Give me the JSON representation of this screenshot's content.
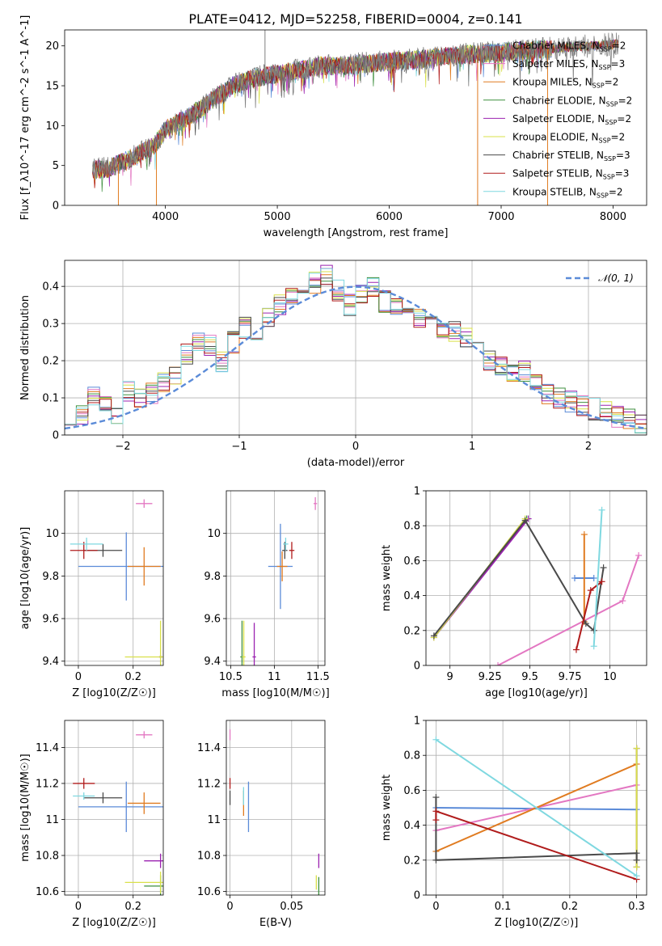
{
  "figure": {
    "title": "PLATE=0412, MJD=52258, FIBERID=0004, z=0.141"
  },
  "colors": {
    "spectrum_data": "#808080",
    "gaussian": "#5b8bd8",
    "grid": "#b0b0b0"
  },
  "models": [
    {
      "name": "Chabrier MILES",
      "nssp": "2",
      "color": "#5b8bd8"
    },
    {
      "name": "Salpeter MILES",
      "nssp": "3",
      "color": "#e377c2"
    },
    {
      "name": "Kroupa MILES",
      "nssp": "2",
      "color": "#e07b20"
    },
    {
      "name": "Chabrier ELODIE",
      "nssp": "2",
      "color": "#3f8f3f"
    },
    {
      "name": "Salpeter ELODIE",
      "nssp": "2",
      "color": "#9b22b0"
    },
    {
      "name": "Kroupa ELODIE",
      "nssp": "2",
      "color": "#d9e04a"
    },
    {
      "name": "Chabrier STELIB",
      "nssp": "3",
      "color": "#4a4a4a"
    },
    {
      "name": "Salpeter STELIB",
      "nssp": "3",
      "color": "#b01b1b"
    },
    {
      "name": "Kroupa STELIB",
      "nssp": "2",
      "color": "#7fd8e0"
    }
  ],
  "chart_data": [
    {
      "id": "spectrum",
      "type": "line",
      "xlabel": "wavelength [Angstrom, rest frame]",
      "ylabel": "Flux [f_λ10^-17 erg cm^-2 s^-1 A^-1]",
      "xlim": [
        3100,
        8300
      ],
      "ylim": [
        0,
        22
      ],
      "xticks": [
        4000,
        5000,
        6000,
        7000,
        8000
      ],
      "yticks": [
        0,
        5,
        10,
        15,
        20
      ],
      "grid": false,
      "legend": "right",
      "x": [
        3350,
        3500,
        3700,
        3900,
        4000,
        4200,
        4400,
        4600,
        4800,
        5000,
        5200,
        5400,
        5600,
        5800,
        6000,
        6200,
        6400,
        6600,
        6800,
        7000,
        7200,
        7400,
        7600,
        7800,
        8000,
        8050
      ],
      "y": [
        4.5,
        4.6,
        6.0,
        7.5,
        9.5,
        11.0,
        13.0,
        15.0,
        16.0,
        16.5,
        17.0,
        17.5,
        17.5,
        17.8,
        18.0,
        18.2,
        18.5,
        18.8,
        19.0,
        19.2,
        19.4,
        19.6,
        19.8,
        20.0,
        20.2,
        20.3
      ],
      "spikes": [
        {
          "x": 3580,
          "y": 0
        },
        {
          "x": 3920,
          "y": 0
        },
        {
          "x": 4890,
          "y": 22
        },
        {
          "x": 6790,
          "y": 0
        },
        {
          "x": 7415,
          "y": 0
        }
      ]
    },
    {
      "id": "residuals",
      "type": "bar",
      "xlabel": "(data-model)/error",
      "ylabel": "Normed distribution",
      "xlim": [
        -2.5,
        2.5
      ],
      "ylim": [
        0,
        0.47
      ],
      "xticks": [
        -2,
        -1,
        0,
        1,
        2
      ],
      "yticks": [
        0.0,
        0.1,
        0.2,
        0.3,
        0.4
      ],
      "grid": true,
      "legend": "top-right",
      "gaussian_label": "𝒩(0, 1)",
      "bin_width": 0.1,
      "x_start": -2.5,
      "histogram": [
        0.04,
        0.05,
        0.1,
        0.08,
        0.06,
        0.12,
        0.1,
        0.11,
        0.14,
        0.16,
        0.22,
        0.25,
        0.24,
        0.2,
        0.25,
        0.29,
        0.28,
        0.32,
        0.35,
        0.37,
        0.4,
        0.41,
        0.43,
        0.39,
        0.35,
        0.38,
        0.4,
        0.36,
        0.34,
        0.33,
        0.31,
        0.3,
        0.28,
        0.28,
        0.26,
        0.23,
        0.2,
        0.18,
        0.17,
        0.17,
        0.14,
        0.11,
        0.1,
        0.09,
        0.08,
        0.07,
        0.06,
        0.05,
        0.04,
        0.03
      ]
    },
    {
      "id": "age-vs-Z",
      "type": "scatter",
      "xlabel": "Z [log10(Z/Z☉)]",
      "ylabel": "age [log10(age/yr)]",
      "xlim": [
        -0.05,
        0.31
      ],
      "ylim": [
        9.38,
        10.2
      ],
      "xticks": [
        0.0,
        0.2
      ],
      "yticks": [
        9.4,
        9.6,
        9.8,
        10.0
      ],
      "grid": true,
      "points": [
        {
          "x": 0.175,
          "y": 9.845,
          "xerr": 0.175,
          "yerr": 0.16,
          "model": 0
        },
        {
          "x": 0.24,
          "y": 10.14,
          "xerr": 0.03,
          "yerr": 0.02,
          "model": 1
        },
        {
          "x": 0.24,
          "y": 9.845,
          "xerr": 0.06,
          "yerr": 0.09,
          "model": 2
        },
        {
          "x": 0.3,
          "y": 9.42,
          "xerr": 0.005,
          "yerr": 0.005,
          "model": 3
        },
        {
          "x": 0.3,
          "y": 9.42,
          "xerr": 0.005,
          "yerr": 0.005,
          "model": 4
        },
        {
          "x": 0.3,
          "y": 9.42,
          "xerr": 0.13,
          "yerr": 0.17,
          "model": 5
        },
        {
          "x": 0.09,
          "y": 9.92,
          "xerr": 0.07,
          "yerr": 0.03,
          "model": 6
        },
        {
          "x": 0.02,
          "y": 9.92,
          "xerr": 0.05,
          "yerr": 0.04,
          "model": 7
        },
        {
          "x": 0.03,
          "y": 9.95,
          "xerr": 0.06,
          "yerr": 0.03,
          "model": 8
        }
      ]
    },
    {
      "id": "age-vs-mass",
      "type": "scatter",
      "xlabel": "mass [log10(M/M☉)]",
      "ylabel": "",
      "xlim": [
        10.45,
        11.58
      ],
      "ylim": [
        9.38,
        10.2
      ],
      "xticks": [
        10.5,
        11.0,
        11.5
      ],
      "yticks": [
        9.4,
        9.6,
        9.8,
        10.0
      ],
      "grid": true,
      "points": [
        {
          "x": 11.07,
          "y": 9.845,
          "xerr": 0.14,
          "yerr": 0.2,
          "model": 0
        },
        {
          "x": 11.47,
          "y": 10.14,
          "xerr": 0.02,
          "yerr": 0.03,
          "model": 1
        },
        {
          "x": 11.09,
          "y": 9.845,
          "xerr": 0.06,
          "yerr": 0.07,
          "model": 2
        },
        {
          "x": 10.63,
          "y": 9.42,
          "xerr": 0.02,
          "yerr": 0.17,
          "model": 3
        },
        {
          "x": 10.77,
          "y": 9.42,
          "xerr": 0.02,
          "yerr": 0.16,
          "model": 4
        },
        {
          "x": 10.65,
          "y": 9.42,
          "xerr": 0.02,
          "yerr": 0.17,
          "model": 5
        },
        {
          "x": 11.12,
          "y": 9.92,
          "xerr": 0.03,
          "yerr": 0.04,
          "model": 6
        },
        {
          "x": 11.2,
          "y": 9.92,
          "xerr": 0.03,
          "yerr": 0.04,
          "model": 7
        },
        {
          "x": 11.13,
          "y": 9.95,
          "xerr": 0.03,
          "yerr": 0.03,
          "model": 8
        }
      ]
    },
    {
      "id": "weight-vs-age",
      "type": "line",
      "xlabel": "age [log10(age/yr)]",
      "ylabel": "mass weight",
      "xlim": [
        8.85,
        10.23
      ],
      "ylim": [
        0,
        1.0
      ],
      "xticks": [
        9.0,
        9.25,
        9.5,
        9.75,
        10.0
      ],
      "yticks": [
        0.0,
        0.2,
        0.4,
        0.6,
        0.8,
        1.0
      ],
      "grid": true,
      "series": [
        {
          "model": 0,
          "x": [
            9.78,
            9.9
          ],
          "y": [
            0.5,
            0.5
          ]
        },
        {
          "model": 1,
          "x": [
            9.3,
            10.08,
            10.18
          ],
          "y": [
            0.0,
            0.37,
            0.63
          ]
        },
        {
          "model": 2,
          "x": [
            9.84,
            9.84
          ],
          "y": [
            0.25,
            0.75
          ]
        },
        {
          "model": 3,
          "x": [
            8.9,
            9.48
          ],
          "y": [
            0.16,
            0.84
          ]
        },
        {
          "model": 4,
          "x": [
            8.9,
            9.49
          ],
          "y": [
            0.16,
            0.84
          ]
        },
        {
          "model": 5,
          "x": [
            8.9,
            9.47
          ],
          "y": [
            0.16,
            0.84
          ]
        },
        {
          "model": 6,
          "x": [
            8.9,
            9.47,
            9.85,
            9.9,
            9.96
          ],
          "y": [
            0.17,
            0.83,
            0.24,
            0.2,
            0.56
          ]
        },
        {
          "model": 7,
          "x": [
            9.79,
            9.88,
            9.95
          ],
          "y": [
            0.09,
            0.43,
            0.48
          ]
        },
        {
          "model": 8,
          "x": [
            9.9,
            9.95
          ],
          "y": [
            0.11,
            0.89
          ]
        }
      ]
    },
    {
      "id": "mass-vs-Z",
      "type": "scatter",
      "xlabel": "Z [log10(Z/Z☉)]",
      "ylabel": "mass [log10(M/M☉)]",
      "xlim": [
        -0.05,
        0.31
      ],
      "ylim": [
        10.58,
        11.55
      ],
      "xticks": [
        0.0,
        0.2
      ],
      "yticks": [
        10.6,
        10.8,
        11.0,
        11.2,
        11.4
      ],
      "grid": true,
      "points": [
        {
          "x": 0.175,
          "y": 11.07,
          "xerr": 0.175,
          "yerr": 0.14,
          "model": 0
        },
        {
          "x": 0.24,
          "y": 11.47,
          "xerr": 0.03,
          "yerr": 0.02,
          "model": 1
        },
        {
          "x": 0.24,
          "y": 11.09,
          "xerr": 0.06,
          "yerr": 0.06,
          "model": 2
        },
        {
          "x": 0.3,
          "y": 10.63,
          "xerr": 0.06,
          "yerr": 0.06,
          "model": 3
        },
        {
          "x": 0.3,
          "y": 10.77,
          "xerr": 0.06,
          "yerr": 0.04,
          "model": 4
        },
        {
          "x": 0.3,
          "y": 10.65,
          "xerr": 0.13,
          "yerr": 0.06,
          "model": 5
        },
        {
          "x": 0.09,
          "y": 11.12,
          "xerr": 0.07,
          "yerr": 0.03,
          "model": 6
        },
        {
          "x": 0.02,
          "y": 11.2,
          "xerr": 0.04,
          "yerr": 0.03,
          "model": 7
        },
        {
          "x": 0.02,
          "y": 11.13,
          "xerr": 0.04,
          "yerr": 0.02,
          "model": 8
        }
      ]
    },
    {
      "id": "mass-vs-EBV",
      "type": "scatter",
      "xlabel": "E(B-V)",
      "ylabel": "",
      "xlim": [
        -0.003,
        0.077
      ],
      "ylim": [
        10.58,
        11.55
      ],
      "xticks": [
        0.0,
        0.05
      ],
      "yticks": [
        10.6,
        10.8,
        11.0,
        11.2,
        11.4
      ],
      "grid": true,
      "points": [
        {
          "x": 0.015,
          "y": 11.07,
          "xerr": 0.0,
          "yerr": 0.14,
          "model": 0
        },
        {
          "x": 0.0,
          "y": 11.47,
          "xerr": 0.0,
          "yerr": 0.03,
          "model": 1
        },
        {
          "x": 0.011,
          "y": 11.09,
          "xerr": 0.0,
          "yerr": 0.07,
          "model": 2
        },
        {
          "x": 0.072,
          "y": 10.63,
          "xerr": 0.0,
          "yerr": 0.05,
          "model": 3
        },
        {
          "x": 0.072,
          "y": 10.77,
          "xerr": 0.0,
          "yerr": 0.04,
          "model": 4
        },
        {
          "x": 0.07,
          "y": 10.65,
          "xerr": 0.0,
          "yerr": 0.04,
          "model": 5
        },
        {
          "x": 0.0,
          "y": 11.12,
          "xerr": 0.0,
          "yerr": 0.04,
          "model": 6
        },
        {
          "x": 0.0,
          "y": 11.2,
          "xerr": 0.0,
          "yerr": 0.03,
          "model": 7
        },
        {
          "x": 0.011,
          "y": 11.13,
          "xerr": 0.0,
          "yerr": 0.05,
          "model": 8
        }
      ]
    },
    {
      "id": "weight-vs-Z",
      "type": "line",
      "xlabel": "Z [log10(Z/Z☉)]",
      "ylabel": "mass weight",
      "xlim": [
        -0.015,
        0.315
      ],
      "ylim": [
        0,
        1.0
      ],
      "xticks": [
        0.0,
        0.1,
        0.2,
        0.3
      ],
      "yticks": [
        0.0,
        0.2,
        0.4,
        0.6,
        0.8,
        1.0
      ],
      "grid": true,
      "series": [
        {
          "model": 0,
          "x": [
            0.0,
            0.3
          ],
          "y": [
            0.5,
            0.49
          ]
        },
        {
          "model": 1,
          "x": [
            0.0,
            0.3
          ],
          "y": [
            0.37,
            0.63
          ]
        },
        {
          "model": 2,
          "x": [
            0.0,
            0.3
          ],
          "y": [
            0.25,
            0.75
          ]
        },
        {
          "model": 3,
          "x": [
            0.3,
            0.3
          ],
          "y": [
            0.16,
            0.84
          ]
        },
        {
          "model": 4,
          "x": [
            0.3,
            0.3
          ],
          "y": [
            0.16,
            0.84
          ]
        },
        {
          "model": 5,
          "x": [
            0.3,
            0.3
          ],
          "y": [
            0.16,
            0.84
          ]
        },
        {
          "model": 6,
          "x": [
            0.0,
            0.0,
            0.3,
            0.3
          ],
          "y": [
            0.56,
            0.2,
            0.24,
            0.2
          ]
        },
        {
          "model": 7,
          "x": [
            0.0,
            0.0,
            0.3
          ],
          "y": [
            0.43,
            0.48,
            0.09
          ]
        },
        {
          "model": 8,
          "x": [
            0.0,
            0.3
          ],
          "y": [
            0.89,
            0.11
          ]
        }
      ]
    }
  ]
}
